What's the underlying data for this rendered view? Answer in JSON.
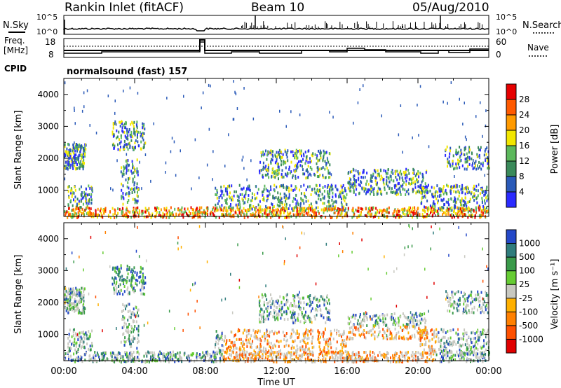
{
  "header": {
    "station": "Rankin Inlet (fitACF)",
    "beam": "Beam 10",
    "date": "05/Aug/2010"
  },
  "top_panels": {
    "nsky_label": "N.Sky",
    "nsearch_label": "N.Search",
    "log_top": "10^5",
    "log_bottom": "10^0",
    "freq_label_1": "Freq.",
    "freq_label_2": "[MHz]",
    "freq_ticks": [
      "18",
      "8"
    ],
    "nave_label": "Nave",
    "nave_ticks": [
      "60",
      "0"
    ],
    "cpid_label": "CPID",
    "cpid_text": "normalsound (fast) 157"
  },
  "chart_data": [
    {
      "type": "heatmap",
      "name": "power-panel",
      "ylabel": "Slant Range [km]",
      "xlabel": "",
      "ylim": [
        180,
        4500
      ],
      "yticks": [
        "4000",
        "3000",
        "2000",
        "1000"
      ],
      "xlim_hours": [
        0,
        24
      ],
      "colorbar_label": "Power [dB]",
      "colorbar_ticks": [
        "28",
        "24",
        "20",
        "16",
        "12",
        "8",
        "4"
      ],
      "colorbar_colors": [
        "#2b2bff",
        "#2a5ab8",
        "#3a8a5a",
        "#5cb85c",
        "#f2e600",
        "#ff9a00",
        "#ff5a00",
        "#e60000"
      ]
    },
    {
      "type": "heatmap",
      "name": "velocity-panel",
      "ylabel": "Slant Range [km]",
      "xlabel": "Time UT",
      "ylim": [
        180,
        4500
      ],
      "yticks": [
        "4000",
        "3000",
        "2000",
        "1000"
      ],
      "xticks": [
        "00:00",
        "04:00",
        "08:00",
        "12:00",
        "16:00",
        "20:00",
        "00:00"
      ],
      "colorbar_label": "Velocity [m s⁻¹]",
      "colorbar_ticks": [
        "1000",
        "500",
        "100",
        "25",
        "-25",
        "-100",
        "-500",
        "-1000"
      ],
      "colorbar_colors": [
        "#2448c8",
        "#2f7c7c",
        "#3a9a4a",
        "#66cc33",
        "#c8c8c0",
        "#ffb000",
        "#ff8000",
        "#ff5000",
        "#e00000"
      ]
    }
  ]
}
